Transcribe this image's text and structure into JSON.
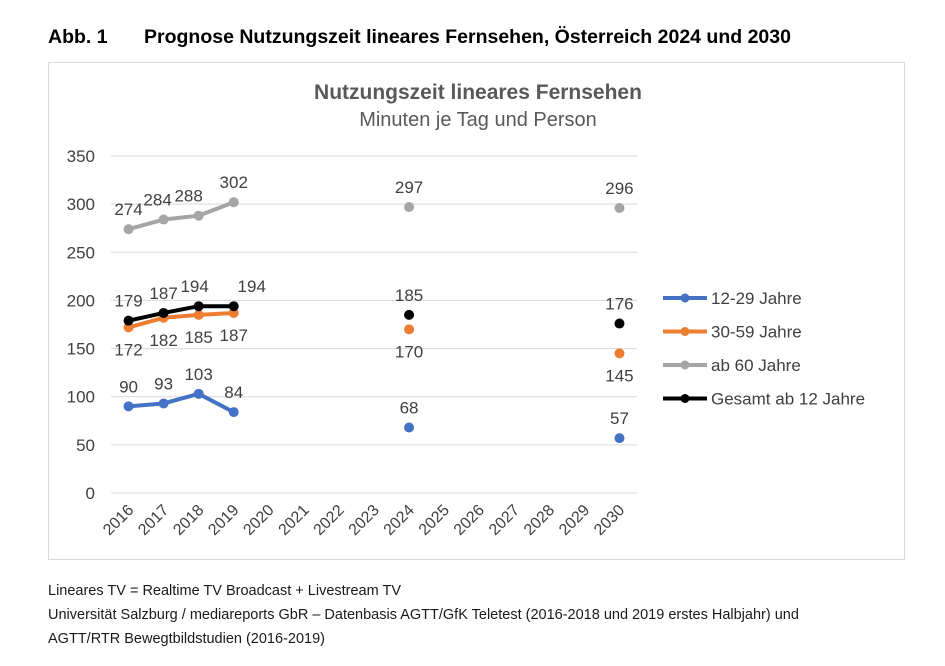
{
  "figure": {
    "number": "Abb. 1",
    "title": "Prognose Nutzungszeit lineares Fernsehen, Österreich 2024 und 2030"
  },
  "footnotes": [
    "Lineares TV = Realtime TV Broadcast + Livestream TV",
    "Universität Salzburg / mediareports GbR – Datenbasis AGTT/GfK Teletest (2016-2018 und 2019 erstes Halbjahr) und",
    "AGTT/RTR Bewegtbildstudien (2016-2019)"
  ],
  "chart_data": {
    "type": "line",
    "title": "Nutzungszeit lineares Fernsehen",
    "subtitle": "Minuten je Tag und Person",
    "categories": [
      "2016",
      "2017",
      "2018",
      "2019",
      "2020",
      "2021",
      "2022",
      "2023",
      "2024",
      "2025",
      "2026",
      "2027",
      "2028",
      "2029",
      "2030"
    ],
    "ylim": [
      0,
      350
    ],
    "yticks": [
      0,
      50,
      100,
      150,
      200,
      250,
      300,
      350
    ],
    "grid": true,
    "legend_position": "right",
    "series": [
      {
        "name": "12-29 Jahre",
        "color": "#4472c4",
        "values": [
          90,
          93,
          103,
          84,
          null,
          null,
          null,
          null,
          68,
          null,
          null,
          null,
          null,
          null,
          57
        ]
      },
      {
        "name": "30-59 Jahre",
        "color": "#ed7d31",
        "values": [
          172,
          182,
          185,
          187,
          null,
          null,
          null,
          null,
          170,
          null,
          null,
          null,
          null,
          null,
          145
        ]
      },
      {
        "name": "ab 60 Jahre",
        "color": "#a5a5a5",
        "values": [
          274,
          284,
          288,
          302,
          null,
          null,
          null,
          null,
          297,
          null,
          null,
          null,
          null,
          null,
          296
        ]
      },
      {
        "name": "Gesamt ab 12 Jahre",
        "color": "#000000",
        "values": [
          179,
          187,
          194,
          194,
          null,
          null,
          null,
          null,
          185,
          null,
          null,
          null,
          null,
          null,
          176
        ]
      }
    ]
  }
}
